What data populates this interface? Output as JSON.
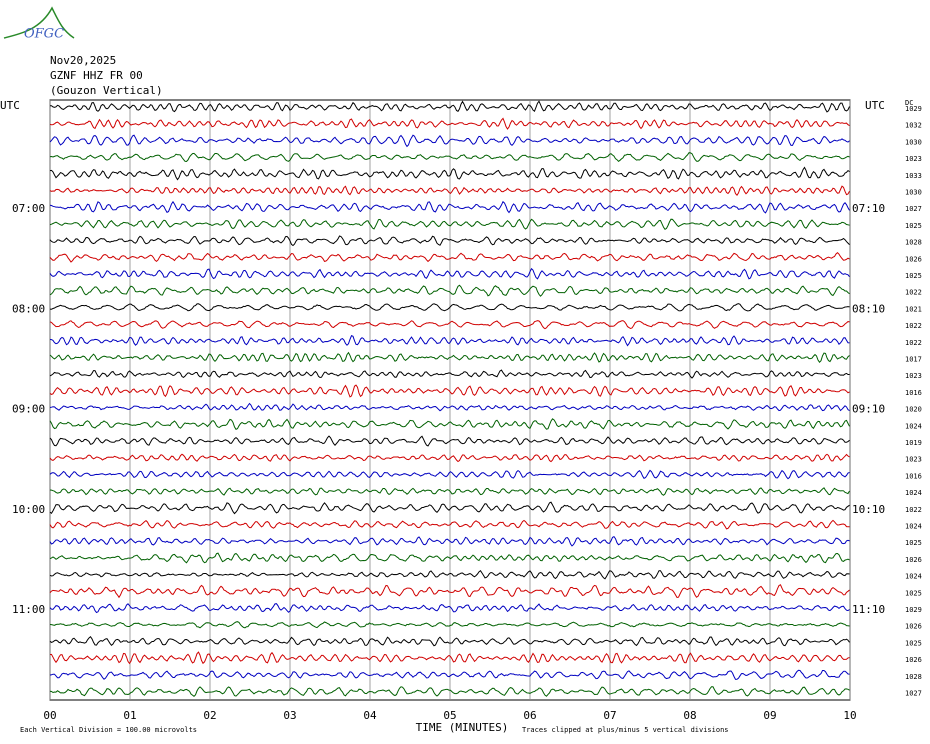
{
  "header": {
    "logo": "OFGC",
    "date": "Nov20,2025",
    "station": "GZNF HHZ FR 00",
    "location": "(Gouzon Vertical)"
  },
  "plot": {
    "left_header": "UTC",
    "right_header": "UTC",
    "dc_header": "DC",
    "left_times": [
      "07:00",
      "08:00",
      "09:00",
      "10:00",
      "11:00"
    ],
    "right_times": [
      "07:10",
      "08:10",
      "09:10",
      "10:10",
      "11:10"
    ],
    "x_ticks": [
      "00",
      "01",
      "02",
      "03",
      "04",
      "05",
      "06",
      "07",
      "08",
      "09",
      "10"
    ],
    "x_label": "TIME (MINUTES)",
    "trace_colors": [
      "#000000",
      "#d00000",
      "#0000c0",
      "#006000"
    ],
    "dc_values": [
      1029,
      1032,
      1030,
      1023,
      1033,
      1030,
      1027,
      1025,
      1028,
      1026,
      1025,
      1022,
      1021,
      1022,
      1022,
      1017,
      1023,
      1016,
      1020,
      1024,
      1019,
      1023,
      1016,
      1024,
      1022,
      1024,
      1025,
      1026,
      1024,
      1025,
      1029,
      1026,
      1025,
      1026,
      1028,
      1027
    ]
  },
  "footer": {
    "scale": "Each Vertical Division =  100.00 microvolts",
    "clip": "Traces clipped at plus/minus 5 vertical divisions"
  }
}
